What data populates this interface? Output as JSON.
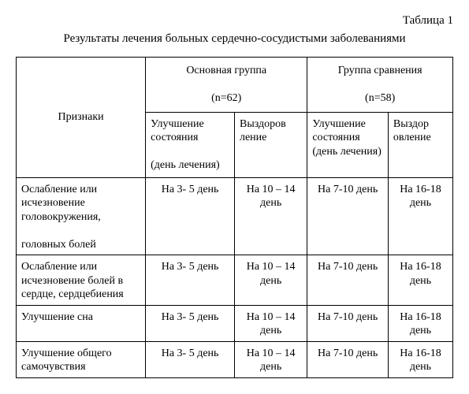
{
  "table_label": "Таблица 1",
  "caption": "Результаты лечения больных сердечно-сосудистыми заболеваниями",
  "headers": {
    "signs": "Признаки",
    "main_group": "Основная группа\n\n(n=62)",
    "comparison_group": "Группа сравнения\n\n(n=58)",
    "main_improve": "Улучшение состояния\n\n(день лечения)",
    "main_recover": "Выздоров\nление",
    "comp_improve": "Улучшение состояния (день лечения)",
    "comp_recover": "Выздор\nовление"
  },
  "rows": [
    {
      "sign": "Ослабление или исчезновение головокружения,\n\nголовных болей",
      "main_improve": "На 3- 5 день",
      "main_recover": "На 10 – 14 день",
      "comp_improve": "На 7-10 день",
      "comp_recover": "На 16-18 день"
    },
    {
      "sign": " Ослабление или исчезновение болей в сердце, сердцебиения",
      "main_improve": "На 3- 5 день",
      "main_recover": "На 10 – 14 день",
      "comp_improve": "На 7-10 день",
      "comp_recover": "На 16-18 день"
    },
    {
      "sign": "Улучшение сна",
      "main_improve": "На 3- 5 день",
      "main_recover": "На 10 – 14 день",
      "comp_improve": "На 7-10 день",
      "comp_recover": "На 16-18 день"
    },
    {
      "sign": "Улучшение общего самочувствия",
      "main_improve": "На 3- 5 день",
      "main_recover": "На 10 – 14 день",
      "comp_improve": "На 7-10 день",
      "comp_recover": "На 16-18 день"
    }
  ]
}
